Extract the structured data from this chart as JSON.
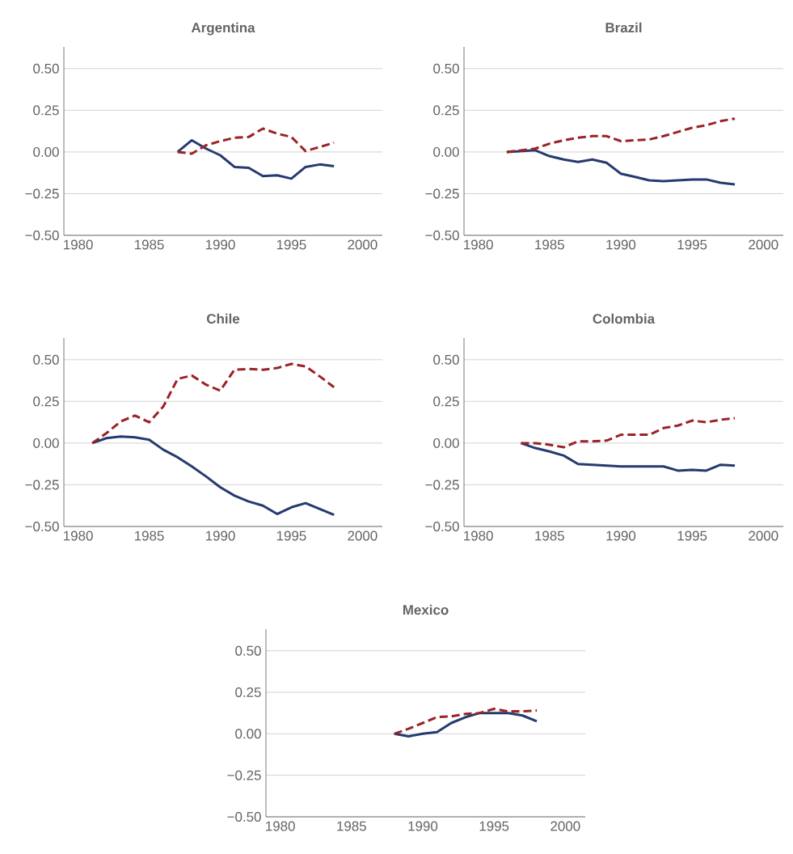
{
  "chart_data": [
    {
      "type": "line",
      "title": "Argentina",
      "grid": "y",
      "xlim": [
        1979,
        2001.4
      ],
      "ylim": [
        -0.5,
        0.63
      ],
      "xticks": [
        1980,
        1985,
        1990,
        1995,
        2000
      ],
      "yticks": [
        {
          "value": -0.5,
          "label": "−0.50"
        },
        {
          "value": -0.25,
          "label": "−0.25"
        },
        {
          "value": 0,
          "label": "0.00"
        },
        {
          "value": 0.25,
          "label": "0.25"
        },
        {
          "value": 0.5,
          "label": "0.50"
        }
      ],
      "x": [
        1987,
        1988,
        1989,
        1990,
        1991,
        1992,
        1993,
        1994,
        1995,
        1996,
        1997,
        1998
      ],
      "series": [
        {
          "color": "#253a6e",
          "line_style": "solid",
          "values": [
            0,
            0.07,
            0.02,
            -0.02,
            -0.09,
            -0.095,
            -0.145,
            -0.14,
            -0.16,
            -0.09,
            -0.075,
            -0.085
          ]
        },
        {
          "color": "#9b2226",
          "line_style": "dashed",
          "values": [
            0,
            -0.01,
            0.04,
            0.065,
            0.085,
            0.09,
            0.14,
            0.11,
            0.09,
            0.005,
            0.03,
            0.055
          ]
        }
      ]
    },
    {
      "type": "line",
      "title": "Brazil",
      "grid": "y",
      "xlim": [
        1979,
        2001.4
      ],
      "ylim": [
        -0.5,
        0.63
      ],
      "xticks": [
        1980,
        1985,
        1990,
        1995,
        2000
      ],
      "yticks": [
        {
          "value": -0.5,
          "label": "−0.50"
        },
        {
          "value": -0.25,
          "label": "−0.25"
        },
        {
          "value": 0,
          "label": "0.00"
        },
        {
          "value": 0.25,
          "label": "0.25"
        },
        {
          "value": 0.5,
          "label": "0.50"
        }
      ],
      "x": [
        1982,
        1983,
        1984,
        1985,
        1986,
        1987,
        1988,
        1989,
        1990,
        1991,
        1992,
        1993,
        1994,
        1995,
        1996,
        1997,
        1998
      ],
      "series": [
        {
          "color": "#253a6e",
          "line_style": "solid",
          "values": [
            0,
            0.005,
            0.01,
            -0.025,
            -0.045,
            -0.06,
            -0.045,
            -0.065,
            -0.13,
            -0.15,
            -0.17,
            -0.175,
            -0.17,
            -0.165,
            -0.165,
            -0.185,
            -0.195
          ]
        },
        {
          "color": "#9b2226",
          "line_style": "dashed",
          "values": [
            0,
            0.01,
            0.02,
            0.05,
            0.07,
            0.085,
            0.095,
            0.095,
            0.065,
            0.07,
            0.075,
            0.095,
            0.12,
            0.145,
            0.16,
            0.185,
            0.2
          ]
        }
      ]
    },
    {
      "type": "line",
      "title": "Chile",
      "grid": "y",
      "xlim": [
        1979,
        2001.4
      ],
      "ylim": [
        -0.5,
        0.63
      ],
      "xticks": [
        1980,
        1985,
        1990,
        1995,
        2000
      ],
      "yticks": [
        {
          "value": -0.5,
          "label": "−0.50"
        },
        {
          "value": -0.25,
          "label": "−0.25"
        },
        {
          "value": 0,
          "label": "0.00"
        },
        {
          "value": 0.25,
          "label": "0.25"
        },
        {
          "value": 0.5,
          "label": "0.50"
        }
      ],
      "x": [
        1981,
        1982,
        1983,
        1984,
        1985,
        1986,
        1987,
        1988,
        1989,
        1990,
        1991,
        1992,
        1993,
        1994,
        1995,
        1996,
        1997,
        1998
      ],
      "series": [
        {
          "color": "#253a6e",
          "line_style": "solid",
          "values": [
            0,
            0.03,
            0.04,
            0.035,
            0.02,
            -0.04,
            -0.085,
            -0.14,
            -0.2,
            -0.265,
            -0.315,
            -0.35,
            -0.375,
            -0.425,
            -0.385,
            -0.36,
            -0.395,
            -0.43
          ]
        },
        {
          "color": "#9b2226",
          "line_style": "dashed",
          "values": [
            0,
            0.06,
            0.13,
            0.165,
            0.125,
            0.22,
            0.385,
            0.405,
            0.35,
            0.315,
            0.44,
            0.445,
            0.44,
            0.45,
            0.475,
            0.46,
            0.4,
            0.335
          ]
        }
      ]
    },
    {
      "type": "line",
      "title": "Colombia",
      "grid": "y",
      "xlim": [
        1979,
        2001.4
      ],
      "ylim": [
        -0.5,
        0.63
      ],
      "xticks": [
        1980,
        1985,
        1990,
        1995,
        2000
      ],
      "yticks": [
        {
          "value": -0.5,
          "label": "−0.50"
        },
        {
          "value": -0.25,
          "label": "−0.25"
        },
        {
          "value": 0,
          "label": "0.00"
        },
        {
          "value": 0.25,
          "label": "0.25"
        },
        {
          "value": 0.5,
          "label": "0.50"
        }
      ],
      "x": [
        1983,
        1984,
        1985,
        1986,
        1987,
        1988,
        1989,
        1990,
        1991,
        1992,
        1993,
        1994,
        1995,
        1996,
        1997,
        1998
      ],
      "series": [
        {
          "color": "#253a6e",
          "line_style": "solid",
          "values": [
            0,
            -0.03,
            -0.05,
            -0.075,
            -0.125,
            -0.13,
            -0.135,
            -0.14,
            -0.14,
            -0.14,
            -0.14,
            -0.165,
            -0.16,
            -0.165,
            -0.13,
            -0.135
          ]
        },
        {
          "color": "#9b2226",
          "line_style": "dashed",
          "values": [
            0,
            0,
            -0.01,
            -0.025,
            0.01,
            0.01,
            0.015,
            0.05,
            0.05,
            0.05,
            0.09,
            0.105,
            0.135,
            0.125,
            0.14,
            0.15
          ]
        }
      ]
    },
    {
      "type": "line",
      "title": "Mexico",
      "grid": "y",
      "xlim": [
        1979,
        2001.4
      ],
      "ylim": [
        -0.5,
        0.63
      ],
      "xticks": [
        1980,
        1985,
        1990,
        1995,
        2000
      ],
      "yticks": [
        {
          "value": -0.5,
          "label": "−0.50"
        },
        {
          "value": -0.25,
          "label": "−0.25"
        },
        {
          "value": 0,
          "label": "0.00"
        },
        {
          "value": 0.25,
          "label": "0.25"
        },
        {
          "value": 0.5,
          "label": "0.50"
        }
      ],
      "x": [
        1988,
        1989,
        1990,
        1991,
        1992,
        1993,
        1994,
        1995,
        1996,
        1997,
        1998
      ],
      "series": [
        {
          "color": "#253a6e",
          "line_style": "solid",
          "values": [
            0,
            -0.015,
            0,
            0.01,
            0.065,
            0.1,
            0.125,
            0.125,
            0.125,
            0.11,
            0.075
          ]
        },
        {
          "color": "#9b2226",
          "line_style": "dashed",
          "values": [
            0,
            0.03,
            0.065,
            0.1,
            0.105,
            0.12,
            0.125,
            0.15,
            0.135,
            0.135,
            0.14
          ]
        }
      ]
    }
  ]
}
